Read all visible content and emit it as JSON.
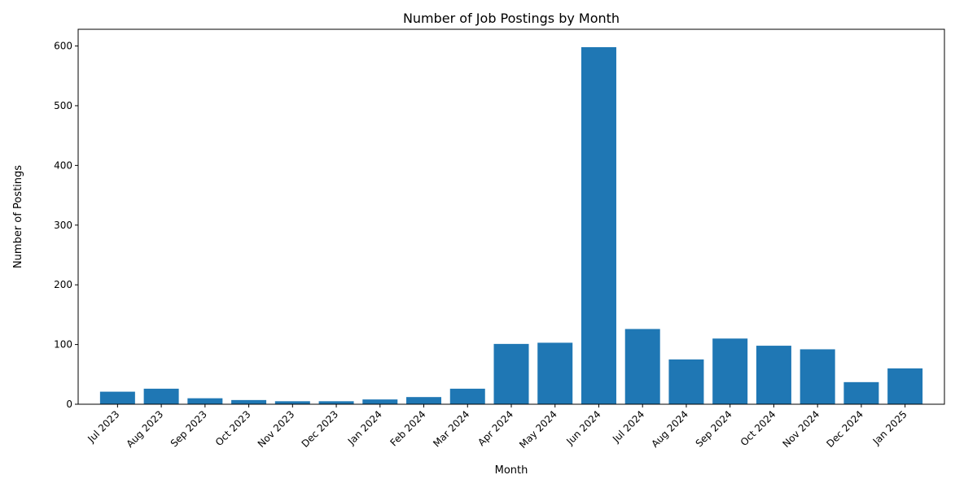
{
  "chart_data": {
    "type": "bar",
    "title": "Number of Job Postings by Month",
    "xlabel": "Month",
    "ylabel": "Number of Postings",
    "categories": [
      "Jul 2023",
      "Aug 2023",
      "Sep 2023",
      "Oct 2023",
      "Nov 2023",
      "Dec 2023",
      "Jan 2024",
      "Feb 2024",
      "Mar 2024",
      "Apr 2024",
      "May 2024",
      "Jun 2024",
      "Jul 2024",
      "Aug 2024",
      "Sep 2024",
      "Oct 2024",
      "Nov 2024",
      "Dec 2024",
      "Jan 2025"
    ],
    "values": [
      21,
      26,
      10,
      7,
      5,
      5,
      8,
      12,
      26,
      101,
      103,
      598,
      126,
      75,
      110,
      98,
      92,
      37,
      60
    ],
    "ylim": [
      0,
      628
    ],
    "yticks": [
      0,
      100,
      200,
      300,
      400,
      500,
      600
    ],
    "bar_color": "#1f77b4",
    "grid": false,
    "legend": false
  }
}
